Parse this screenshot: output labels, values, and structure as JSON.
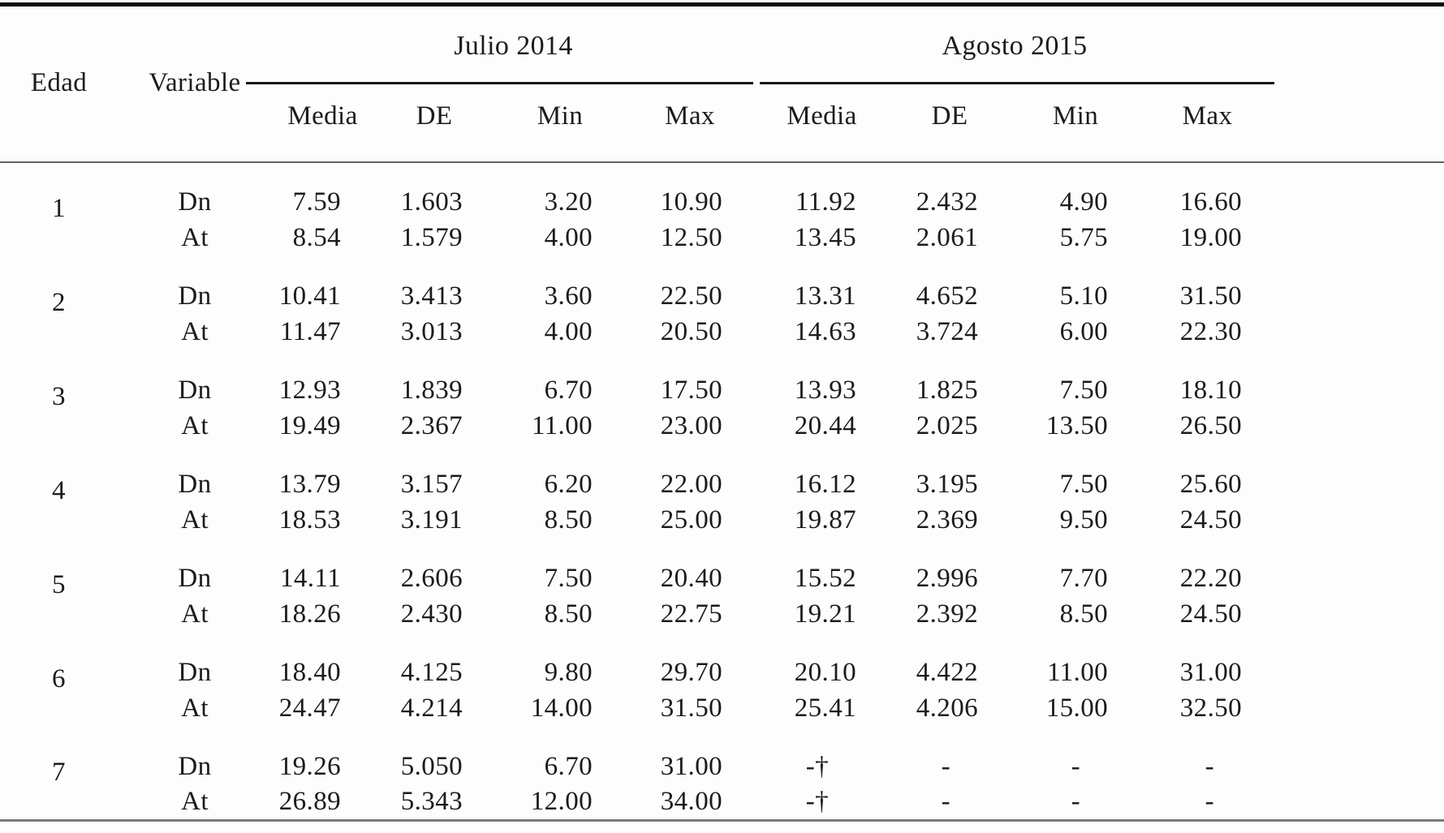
{
  "table": {
    "header": {
      "edad": "Edad",
      "variable": "Variable",
      "groups": [
        {
          "label": "Julio 2014",
          "subcols": [
            "Media",
            "DE",
            "Min",
            "Max"
          ]
        },
        {
          "label": "Agosto 2015",
          "subcols": [
            "Media",
            "DE",
            "Min",
            "Max"
          ]
        }
      ]
    },
    "groups": [
      {
        "edad": "1",
        "rows": [
          {
            "variable": "Dn",
            "values": [
              "7.59",
              "1.603",
              "3.20",
              "10.90",
              "11.92",
              "2.432",
              "4.90",
              "16.60"
            ]
          },
          {
            "variable": "At",
            "values": [
              "8.54",
              "1.579",
              "4.00",
              "12.50",
              "13.45",
              "2.061",
              "5.75",
              "19.00"
            ]
          }
        ]
      },
      {
        "edad": "2",
        "rows": [
          {
            "variable": "Dn",
            "values": [
              "10.41",
              "3.413",
              "3.60",
              "22.50",
              "13.31",
              "4.652",
              "5.10",
              "31.50"
            ]
          },
          {
            "variable": "At",
            "values": [
              "11.47",
              "3.013",
              "4.00",
              "20.50",
              "14.63",
              "3.724",
              "6.00",
              "22.30"
            ]
          }
        ]
      },
      {
        "edad": "3",
        "rows": [
          {
            "variable": "Dn",
            "values": [
              "12.93",
              "1.839",
              "6.70",
              "17.50",
              "13.93",
              "1.825",
              "7.50",
              "18.10"
            ]
          },
          {
            "variable": "At",
            "values": [
              "19.49",
              "2.367",
              "11.00",
              "23.00",
              "20.44",
              "2.025",
              "13.50",
              "26.50"
            ]
          }
        ]
      },
      {
        "edad": "4",
        "rows": [
          {
            "variable": "Dn",
            "values": [
              "13.79",
              "3.157",
              "6.20",
              "22.00",
              "16.12",
              "3.195",
              "7.50",
              "25.60"
            ]
          },
          {
            "variable": "At",
            "values": [
              "18.53",
              "3.191",
              "8.50",
              "25.00",
              "19.87",
              "2.369",
              "9.50",
              "24.50"
            ]
          }
        ]
      },
      {
        "edad": "5",
        "rows": [
          {
            "variable": "Dn",
            "values": [
              "14.11",
              "2.606",
              "7.50",
              "20.40",
              "15.52",
              "2.996",
              "7.70",
              "22.20"
            ]
          },
          {
            "variable": "At",
            "values": [
              "18.26",
              "2.430",
              "8.50",
              "22.75",
              "19.21",
              "2.392",
              "8.50",
              "24.50"
            ]
          }
        ]
      },
      {
        "edad": "6",
        "rows": [
          {
            "variable": "Dn",
            "values": [
              "18.40",
              "4.125",
              "9.80",
              "29.70",
              "20.10",
              "4.422",
              "11.00",
              "31.00"
            ]
          },
          {
            "variable": "At",
            "values": [
              "24.47",
              "4.214",
              "14.00",
              "31.50",
              "25.41",
              "4.206",
              "15.00",
              "32.50"
            ]
          }
        ]
      },
      {
        "edad": "7",
        "rows": [
          {
            "variable": "Dn",
            "values": [
              "19.26",
              "5.050",
              "6.70",
              "31.00",
              "-†",
              "-",
              "-",
              "-"
            ]
          },
          {
            "variable": "At",
            "values": [
              "26.89",
              "5.343",
              "12.00",
              "34.00",
              "-†",
              "-",
              "-",
              "-"
            ]
          }
        ]
      }
    ]
  },
  "rules": {
    "top_rule_color": "#0a0a0a",
    "spanner_color": "#161616",
    "mid_rule_color": "#646464",
    "bottom_rule_color": "#7a7a7a"
  }
}
